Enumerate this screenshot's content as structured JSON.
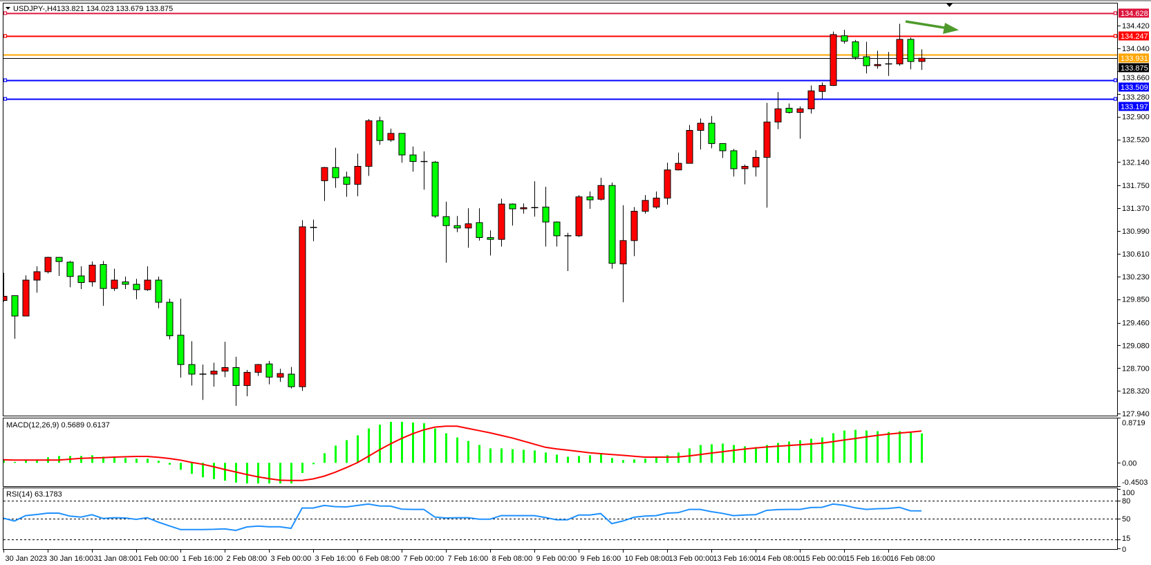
{
  "colors": {
    "background": "#FFFFFF",
    "frame": "#000000",
    "bull_candle": "#FF0000",
    "bear_candle": "#00FF00",
    "candle_outline": "#000000",
    "macd_histogram": "#00FF00",
    "macd_signal": "#FF0000",
    "rsi_line": "#1E90FF",
    "arrow": "#4E9A2C"
  },
  "chart_data": [
    {
      "type": "candlestick",
      "title": "USDJPY-,H4",
      "ohlc_readout": "133.821 134.023 133.679 133.875",
      "ylim": [
        127.907,
        134.801
      ],
      "grid": false,
      "y_ticks": [
        "134.420",
        "134.040",
        "133.660",
        "133.280",
        "132.900",
        "132.520",
        "132.140",
        "131.750",
        "131.370",
        "130.990",
        "130.610",
        "130.230",
        "129.850",
        "129.460",
        "129.080",
        "128.700",
        "128.320",
        "127.940"
      ],
      "x_ticks": [
        {
          "label": "30 Jan 2023",
          "bar": 0
        },
        {
          "label": "30 Jan 16:00",
          "bar": 4
        },
        {
          "label": "31 Jan 08:00",
          "bar": 8
        },
        {
          "label": "1 Feb 00:00",
          "bar": 12
        },
        {
          "label": "1 Feb 16:00",
          "bar": 16
        },
        {
          "label": "2 Feb 08:00",
          "bar": 20
        },
        {
          "label": "3 Feb 00:00",
          "bar": 24
        },
        {
          "label": "3 Feb 16:00",
          "bar": 28
        },
        {
          "label": "6 Feb 08:00",
          "bar": 32
        },
        {
          "label": "7 Feb 00:00",
          "bar": 36
        },
        {
          "label": "7 Feb 16:00",
          "bar": 40
        },
        {
          "label": "8 Feb 08:00",
          "bar": 44
        },
        {
          "label": "9 Feb 00:00",
          "bar": 48
        },
        {
          "label": "9 Feb 16:00",
          "bar": 52
        },
        {
          "label": "10 Feb 08:00",
          "bar": 56
        },
        {
          "label": "13 Feb 00:00",
          "bar": 60
        },
        {
          "label": "13 Feb 16:00",
          "bar": 64
        },
        {
          "label": "14 Feb 08:00",
          "bar": 68
        },
        {
          "label": "15 Feb 00:00",
          "bar": 72
        },
        {
          "label": "15 Feb 16:00",
          "bar": 76
        },
        {
          "label": "16 Feb 08:00",
          "bar": 80
        }
      ],
      "ohlc": [
        [
          129.83,
          130.29,
          129.81,
          129.9
        ],
        [
          129.91,
          129.91,
          129.19,
          129.57
        ],
        [
          129.57,
          130.25,
          129.57,
          130.17
        ],
        [
          130.17,
          130.4,
          129.96,
          130.31
        ],
        [
          130.31,
          130.56,
          130.28,
          130.55
        ],
        [
          130.55,
          130.55,
          130.24,
          130.48
        ],
        [
          130.47,
          130.49,
          130.05,
          130.23
        ],
        [
          130.24,
          130.4,
          130.02,
          130.13
        ],
        [
          130.14,
          130.48,
          130.06,
          130.42
        ],
        [
          130.43,
          130.49,
          129.74,
          130.03
        ],
        [
          130.03,
          130.36,
          129.99,
          130.17
        ],
        [
          130.14,
          130.23,
          130.02,
          130.1
        ],
        [
          130.1,
          130.19,
          129.85,
          130.01
        ],
        [
          130.01,
          130.4,
          129.99,
          130.17
        ],
        [
          130.17,
          130.23,
          129.7,
          129.8
        ],
        [
          129.8,
          129.86,
          129.18,
          129.24
        ],
        [
          129.25,
          129.86,
          128.54,
          128.76
        ],
        [
          128.76,
          129.15,
          128.41,
          128.6
        ],
        [
          128.6,
          128.76,
          128.17,
          128.6
        ],
        [
          128.6,
          128.79,
          128.39,
          128.65
        ],
        [
          128.65,
          129.14,
          128.55,
          128.71
        ],
        [
          128.71,
          128.89,
          128.07,
          128.41
        ],
        [
          128.41,
          128.67,
          128.23,
          128.63
        ],
        [
          128.63,
          128.77,
          128.57,
          128.76
        ],
        [
          128.77,
          128.82,
          128.43,
          128.55
        ],
        [
          128.55,
          128.69,
          128.47,
          128.61
        ],
        [
          128.6,
          128.72,
          128.36,
          128.39
        ],
        [
          128.39,
          131.17,
          128.32,
          131.06
        ],
        [
          131.05,
          131.18,
          130.82,
          131.05
        ],
        [
          131.83,
          132.06,
          131.49,
          132.05
        ],
        [
          132.05,
          132.38,
          131.71,
          131.88
        ],
        [
          131.89,
          131.98,
          131.56,
          131.77
        ],
        [
          131.77,
          132.28,
          131.57,
          132.07
        ],
        [
          132.07,
          132.86,
          131.91,
          132.83
        ],
        [
          132.83,
          132.9,
          132.43,
          132.5
        ],
        [
          132.51,
          132.7,
          132.48,
          132.62
        ],
        [
          132.62,
          132.62,
          132.13,
          132.26
        ],
        [
          132.26,
          132.4,
          131.98,
          132.15
        ],
        [
          132.15,
          132.32,
          131.68,
          132.15
        ],
        [
          132.14,
          132.16,
          131.21,
          131.24
        ],
        [
          131.23,
          131.48,
          130.46,
          131.08
        ],
        [
          131.08,
          131.24,
          130.97,
          131.04
        ],
        [
          131.04,
          131.37,
          130.71,
          131.11
        ],
        [
          131.13,
          131.37,
          130.83,
          130.88
        ],
        [
          130.88,
          131.0,
          130.58,
          130.85
        ],
        [
          130.85,
          131.53,
          130.73,
          131.44
        ],
        [
          131.44,
          131.45,
          131.08,
          131.36
        ],
        [
          131.36,
          131.45,
          131.28,
          131.38
        ],
        [
          131.38,
          131.82,
          131.23,
          131.38
        ],
        [
          131.39,
          131.73,
          130.73,
          131.14
        ],
        [
          131.14,
          131.15,
          130.73,
          130.91
        ],
        [
          130.91,
          130.96,
          130.32,
          130.91
        ],
        [
          130.91,
          131.59,
          130.89,
          131.56
        ],
        [
          131.56,
          131.65,
          131.36,
          131.51
        ],
        [
          131.52,
          131.88,
          131.5,
          131.75
        ],
        [
          131.75,
          131.8,
          130.36,
          130.45
        ],
        [
          130.44,
          131.42,
          129.8,
          130.83
        ],
        [
          130.83,
          131.39,
          130.57,
          131.32
        ],
        [
          131.32,
          131.59,
          131.28,
          131.5
        ],
        [
          131.39,
          131.65,
          131.36,
          131.54
        ],
        [
          131.54,
          132.13,
          131.43,
          132.01
        ],
        [
          132.01,
          132.3,
          132.0,
          132.12
        ],
        [
          132.12,
          132.76,
          132.12,
          132.67
        ],
        [
          132.67,
          132.87,
          132.35,
          132.79
        ],
        [
          132.79,
          132.91,
          132.37,
          132.45
        ],
        [
          132.45,
          132.45,
          132.21,
          132.33
        ],
        [
          132.33,
          132.36,
          131.9,
          132.03
        ],
        [
          132.03,
          132.1,
          131.77,
          132.07
        ],
        [
          132.06,
          132.34,
          131.9,
          132.22
        ],
        [
          132.22,
          133.13,
          131.38,
          132.81
        ],
        [
          132.81,
          133.31,
          132.69,
          133.03
        ],
        [
          133.04,
          133.12,
          132.95,
          132.97
        ],
        [
          132.97,
          133.07,
          132.53,
          133.03
        ],
        [
          133.03,
          133.42,
          132.95,
          133.33
        ],
        [
          133.32,
          133.47,
          133.2,
          133.42
        ],
        [
          133.42,
          134.32,
          133.41,
          134.27
        ],
        [
          134.25,
          134.35,
          134.12,
          134.16
        ],
        [
          134.15,
          134.18,
          133.85,
          133.89
        ],
        [
          133.9,
          134.15,
          133.62,
          133.75
        ],
        [
          133.75,
          134.0,
          133.7,
          133.77
        ],
        [
          133.78,
          133.98,
          133.58,
          133.78
        ],
        [
          133.78,
          134.45,
          133.75,
          134.19
        ],
        [
          134.19,
          134.22,
          133.69,
          133.82
        ],
        [
          133.821,
          134.023,
          133.679,
          133.875
        ]
      ],
      "horizontal_lines": [
        {
          "price": 134.628,
          "label": "134.628",
          "color": "#DC143C",
          "handles": true
        },
        {
          "price": 134.247,
          "label": "134.247",
          "color": "#FF0000",
          "handles": true
        },
        {
          "price": 133.931,
          "label": "133.931",
          "color": "#FFA500",
          "handles": false
        },
        {
          "price": 133.509,
          "label": "133.509",
          "color": "#0000FF",
          "handles": true
        },
        {
          "price": 133.197,
          "label": "133.197",
          "color": "#0000FF",
          "handles": true
        }
      ],
      "current_price": {
        "price": 133.875,
        "label": "133.875",
        "color": "#000000"
      },
      "annotations": [
        {
          "type": "arrow",
          "direction": "down-right",
          "color": "#4E9A2C"
        }
      ],
      "shift_marker": "triangle-down-icon"
    },
    {
      "type": "bar",
      "title": "MACD(12,26,9) 0.5689 0.6137",
      "ylim": [
        -0.4503,
        0.8719
      ],
      "y_ticks": [
        {
          "value": 0.8719,
          "label": "0.8719"
        },
        {
          "value": 0.0,
          "label": "0.00"
        },
        {
          "value": -0.4503,
          "label": "-0.4503"
        }
      ],
      "histogram": [
        0.044,
        0.018,
        0.044,
        0.053,
        0.106,
        0.133,
        0.133,
        0.133,
        0.146,
        0.119,
        0.097,
        0.093,
        0.08,
        0.08,
        0.04,
        -0.035,
        -0.133,
        -0.212,
        -0.279,
        -0.314,
        -0.345,
        -0.381,
        -0.398,
        -0.398,
        -0.398,
        -0.398,
        -0.398,
        -0.195,
        -0.027,
        0.186,
        0.332,
        0.438,
        0.531,
        0.664,
        0.739,
        0.792,
        0.792,
        0.779,
        0.765,
        0.664,
        0.571,
        0.489,
        0.423,
        0.345,
        0.279,
        0.279,
        0.265,
        0.252,
        0.239,
        0.199,
        0.159,
        0.119,
        0.133,
        0.146,
        0.173,
        0.093,
        0.053,
        0.066,
        0.08,
        0.106,
        0.146,
        0.199,
        0.279,
        0.345,
        0.358,
        0.372,
        0.345,
        0.319,
        0.305,
        0.345,
        0.385,
        0.412,
        0.438,
        0.465,
        0.491,
        0.571,
        0.624,
        0.637,
        0.624,
        0.611,
        0.597,
        0.611,
        0.584,
        0.5689
      ],
      "signal": [
        0.058,
        0.055,
        0.053,
        0.053,
        0.053,
        0.053,
        0.07,
        0.088,
        0.095,
        0.1,
        0.11,
        0.117,
        0.124,
        0.124,
        0.106,
        0.084,
        0.053,
        0.009,
        -0.027,
        -0.075,
        -0.128,
        -0.177,
        -0.226,
        -0.27,
        -0.305,
        -0.336,
        -0.341,
        -0.341,
        -0.31,
        -0.257,
        -0.181,
        -0.093,
        0.004,
        0.128,
        0.252,
        0.367,
        0.473,
        0.562,
        0.637,
        0.69,
        0.708,
        0.708,
        0.665,
        0.622,
        0.58,
        0.53,
        0.48,
        0.42,
        0.36,
        0.3,
        0.27,
        0.245,
        0.22,
        0.195,
        0.178,
        0.162,
        0.145,
        0.128,
        0.111,
        0.111,
        0.111,
        0.113,
        0.133,
        0.16,
        0.19,
        0.215,
        0.24,
        0.265,
        0.288,
        0.305,
        0.32,
        0.335,
        0.35,
        0.365,
        0.381,
        0.41,
        0.44,
        0.47,
        0.5,
        0.53,
        0.555,
        0.575,
        0.593,
        0.6137
      ]
    },
    {
      "type": "line",
      "title": "RSI(14) 63.1783",
      "ylim": [
        0,
        100
      ],
      "levels": [
        80,
        50,
        15
      ],
      "y_ticks": [
        {
          "value": 100,
          "label": "100"
        },
        {
          "value": 80,
          "label": "80"
        },
        {
          "value": 50,
          "label": "50"
        },
        {
          "value": 15,
          "label": "15"
        },
        {
          "value": 0,
          "label": "0"
        }
      ],
      "values": [
        50.8,
        46.1,
        55.1,
        57,
        59.3,
        59.3,
        54.3,
        52.7,
        56.6,
        50.4,
        51.6,
        51.2,
        48.8,
        51.6,
        44.2,
        37.9,
        31.7,
        31.7,
        31.7,
        32.1,
        32.9,
        30.2,
        36,
        37.5,
        36.4,
        36.4,
        33.7,
        67.9,
        67.9,
        72.2,
        70.2,
        69.8,
        72.2,
        74.5,
        71.4,
        71,
        66,
        65.6,
        65.6,
        52.7,
        51.2,
        51.6,
        51.6,
        49.2,
        49.2,
        55.1,
        55.1,
        55.1,
        55.1,
        51.9,
        48.1,
        48.1,
        56.2,
        56.2,
        58.6,
        41.8,
        46.1,
        52.3,
        54.3,
        55.1,
        59.3,
        60.1,
        65.6,
        65.6,
        61.7,
        58.9,
        55.1,
        56.2,
        56.6,
        64,
        65.2,
        65.6,
        65.6,
        68.7,
        69.1,
        74.5,
        72.6,
        68.3,
        65.6,
        66.7,
        67.1,
        69.1,
        63.2,
        63.1783
      ]
    }
  ]
}
